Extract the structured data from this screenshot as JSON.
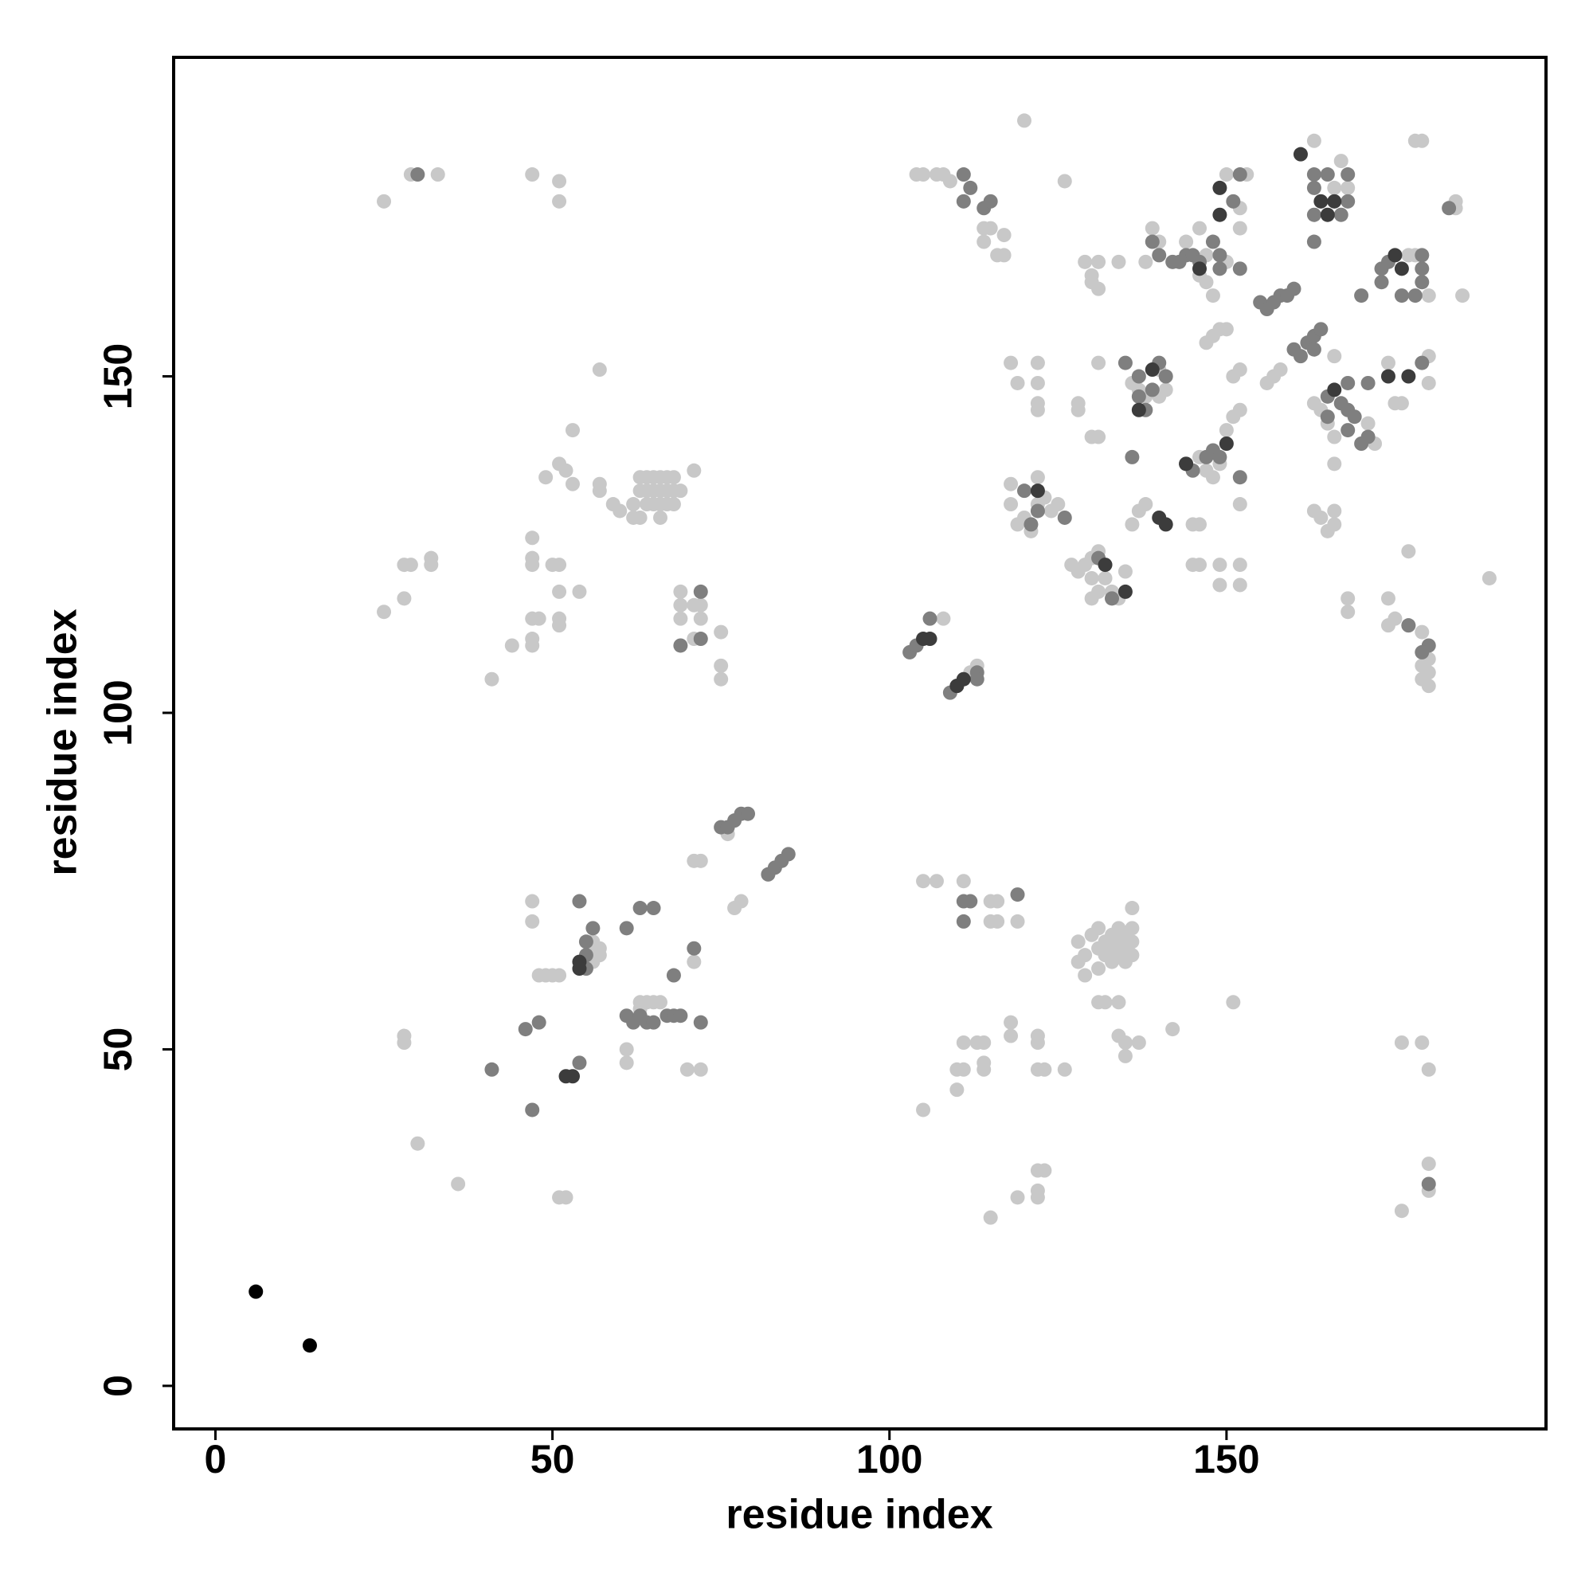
{
  "chart_data": {
    "type": "scatter",
    "x_label": "residue index",
    "y_label": "residue index",
    "xlim": [
      -6.2,
      197.4
    ],
    "ylim": [
      -6.4,
      197.4
    ],
    "xticks": [
      0,
      50,
      100,
      150
    ],
    "yticks": [
      0,
      50,
      100,
      150
    ],
    "series": [
      {
        "color": "#c8c8c8",
        "x": [
          25,
          29,
          33,
          47,
          51,
          51,
          57,
          53,
          51,
          52,
          49,
          57,
          57,
          53,
          59,
          60,
          62,
          63,
          62,
          63,
          64,
          64,
          65,
          66,
          67,
          68,
          65,
          66,
          67,
          68,
          69,
          63,
          64,
          65,
          66,
          67,
          68,
          66,
          71,
          25,
          28,
          28,
          29,
          32,
          32,
          41,
          44,
          47,
          47,
          47,
          47,
          48,
          47,
          47,
          50,
          51,
          51,
          54,
          51,
          51,
          69,
          69,
          69,
          71,
          72,
          72,
          71,
          75,
          75,
          75,
          71,
          72,
          76,
          77,
          78,
          82,
          47,
          47,
          48,
          49,
          50,
          51,
          56,
          56,
          56,
          56,
          57,
          57,
          61,
          61,
          63,
          64,
          65,
          66,
          63,
          70,
          72,
          71,
          28,
          28,
          30,
          36,
          51,
          52,
          105,
          107,
          111,
          115,
          115,
          116,
          116,
          119,
          128,
          128,
          129,
          129,
          130,
          131,
          131,
          131,
          132,
          132,
          133,
          133,
          133,
          134,
          134,
          134,
          135,
          135,
          135,
          136,
          136,
          136,
          136,
          131,
          132,
          134,
          151,
          134,
          135,
          137,
          135,
          142,
          122,
          122,
          118,
          118,
          111,
          113,
          114,
          110,
          111,
          114,
          114,
          110,
          122,
          123,
          126,
          105,
          115,
          119,
          122,
          123,
          122,
          122,
          176,
          179,
          180,
          180,
          180,
          176,
          189,
          108,
          112,
          113,
          104,
          105,
          107,
          108,
          109,
          114,
          115,
          114,
          116,
          117,
          117,
          126,
          120,
          118,
          119,
          122,
          122,
          122,
          122,
          128,
          128,
          131,
          130,
          131,
          118,
          118,
          119,
          120,
          122,
          122,
          123,
          124,
          125,
          121,
          127,
          128,
          129,
          130,
          131,
          130,
          132,
          133,
          131,
          130,
          134,
          135,
          136,
          137,
          138,
          136,
          137,
          138,
          140,
          140,
          141,
          129,
          130,
          131,
          130,
          131,
          134,
          138,
          139,
          140,
          144,
          146,
          147,
          146,
          147,
          148,
          150,
          150,
          152,
          153,
          152,
          151,
          152,
          147,
          148,
          149,
          150,
          147,
          148,
          149,
          150,
          151,
          152,
          146,
          145,
          146,
          145,
          146,
          149,
          149,
          152,
          152,
          152,
          156,
          157,
          158,
          163,
          166,
          167,
          168,
          163,
          164,
          165,
          166,
          163,
          164,
          165,
          166,
          166,
          166,
          166,
          168,
          168,
          174,
          174,
          175,
          177,
          179,
          171,
          172,
          175,
          176,
          174,
          177,
          178,
          180,
          180,
          180,
          178,
          179,
          184,
          184,
          185,
          177,
          179,
          180,
          180,
          180,
          179
        ],
        "y": [
          176,
          180,
          180,
          180,
          179,
          176,
          151,
          142,
          137,
          136,
          135,
          134,
          133,
          134,
          131,
          130,
          129,
          129,
          131,
          133,
          133,
          135,
          135,
          135,
          135,
          135,
          133,
          133,
          133,
          133,
          133,
          135,
          131,
          131,
          131,
          131,
          131,
          129,
          136,
          115,
          117,
          122,
          122,
          122,
          123,
          105,
          110,
          126,
          123,
          122,
          114,
          114,
          111,
          110,
          122,
          122,
          118,
          118,
          114,
          113,
          118,
          116,
          114,
          116,
          116,
          114,
          111,
          112,
          107,
          105,
          78,
          78,
          82,
          71,
          72,
          76,
          72,
          69,
          61,
          61,
          61,
          61,
          66,
          65,
          64,
          63,
          64,
          65,
          50,
          48,
          57,
          57,
          57,
          57,
          56,
          47,
          47,
          63,
          52,
          51,
          36,
          30,
          28,
          28,
          75,
          75,
          75,
          72,
          69,
          72,
          69,
          69,
          66,
          63,
          64,
          61,
          67,
          68,
          65,
          62,
          66,
          64,
          67,
          65,
          63,
          68,
          66,
          64,
          67,
          65,
          63,
          68,
          66,
          64,
          71,
          57,
          57,
          57,
          57,
          52,
          51,
          51,
          49,
          53,
          52,
          51,
          54,
          52,
          51,
          51,
          51,
          47,
          47,
          48,
          47,
          44,
          47,
          47,
          47,
          41,
          25,
          28,
          32,
          32,
          29,
          28,
          51,
          51,
          47,
          33,
          29,
          26,
          120,
          114,
          106,
          107,
          180,
          180,
          180,
          180,
          179,
          172,
          172,
          170,
          168,
          171,
          168,
          179,
          188,
          152,
          149,
          152,
          149,
          146,
          145,
          146,
          145,
          152,
          141,
          141,
          134,
          131,
          128,
          129,
          131,
          135,
          132,
          130,
          131,
          127,
          122,
          121,
          122,
          123,
          124,
          120,
          120,
          118,
          118,
          117,
          117,
          121,
          128,
          130,
          131,
          149,
          148,
          147,
          147,
          151,
          148,
          167,
          165,
          167,
          164,
          163,
          167,
          167,
          172,
          170,
          170,
          172,
          168,
          165,
          164,
          162,
          167,
          180,
          172,
          180,
          175,
          150,
          151,
          155,
          156,
          157,
          157,
          136,
          135,
          137,
          142,
          144,
          145,
          138,
          128,
          128,
          122,
          122,
          122,
          119,
          122,
          119,
          131,
          149,
          150,
          151,
          185,
          178,
          182,
          178,
          146,
          145,
          143,
          141,
          130,
          129,
          127,
          128,
          130,
          137,
          153,
          117,
          115,
          117,
          113,
          114,
          113,
          112,
          143,
          140,
          146,
          146,
          152,
          168,
          168,
          162,
          149,
          153,
          185,
          185,
          175,
          176,
          162,
          124,
          107,
          106,
          104,
          108,
          105
        ]
      },
      {
        "color": "#7f7f7f",
        "x": [
          30,
          54,
          56,
          55,
          55,
          55,
          61,
          63,
          65,
          68,
          71,
          61,
          62,
          63,
          64,
          65,
          67,
          68,
          69,
          72,
          46,
          48,
          47,
          41,
          54,
          69,
          72,
          72,
          82,
          83,
          84,
          85,
          75,
          76,
          77,
          78,
          79,
          111,
          112,
          111,
          119,
          180,
          103,
          104,
          106,
          109,
          110,
          113,
          113,
          112,
          111,
          114,
          115,
          111,
          136,
          137,
          138,
          139,
          137,
          135,
          140,
          141,
          139,
          140,
          142,
          143,
          144,
          145,
          146,
          148,
          149,
          149,
          152,
          151,
          152,
          144,
          145,
          147,
          148,
          149,
          152,
          155,
          156,
          157,
          158,
          159,
          160,
          162,
          163,
          164,
          163,
          160,
          161,
          163,
          163,
          163,
          163,
          165,
          168,
          168,
          167,
          165,
          165,
          167,
          168,
          169,
          168,
          171,
          170,
          168,
          171,
          170,
          173,
          173,
          174,
          176,
          178,
          179,
          179,
          179,
          179,
          183,
          180,
          179,
          177,
          133,
          126,
          122,
          121,
          120,
          131
        ],
        "y": [
          180,
          72,
          68,
          66,
          64,
          62,
          68,
          71,
          71,
          61,
          65,
          55,
          54,
          55,
          54,
          54,
          55,
          55,
          55,
          54,
          53,
          54,
          41,
          47,
          48,
          110,
          118,
          111,
          76,
          77,
          78,
          79,
          83,
          83,
          84,
          85,
          85,
          72,
          72,
          69,
          73,
          30,
          109,
          110,
          114,
          103,
          104,
          106,
          105,
          178,
          180,
          175,
          176,
          176,
          138,
          147,
          145,
          148,
          150,
          152,
          152,
          150,
          170,
          168,
          167,
          167,
          168,
          168,
          167,
          170,
          168,
          166,
          180,
          176,
          166,
          137,
          136,
          138,
          139,
          138,
          135,
          161,
          160,
          161,
          162,
          162,
          163,
          155,
          156,
          157,
          154,
          154,
          153,
          180,
          178,
          174,
          170,
          180,
          180,
          176,
          174,
          147,
          144,
          146,
          145,
          144,
          142,
          141,
          140,
          149,
          149,
          162,
          164,
          166,
          167,
          162,
          162,
          164,
          166,
          168,
          152,
          175,
          110,
          109,
          113,
          117,
          129,
          130,
          128,
          133,
          123
        ]
      },
      {
        "color": "#3c3c3c",
        "x": [
          105,
          106,
          111,
          110,
          53,
          52,
          54,
          54,
          132,
          135,
          146,
          149,
          149,
          150,
          144,
          164,
          165,
          166,
          166,
          175,
          176,
          177,
          174,
          161,
          140,
          139,
          137,
          141,
          122
        ],
        "y": [
          111,
          111,
          105,
          104,
          46,
          46,
          63,
          62,
          122,
          118,
          166,
          178,
          174,
          140,
          137,
          176,
          174,
          176,
          148,
          168,
          166,
          150,
          150,
          183,
          129,
          151,
          145,
          128,
          133
        ]
      },
      {
        "color": "#000000",
        "x": [
          6,
          14
        ],
        "y": [
          14,
          6
        ]
      }
    ]
  }
}
